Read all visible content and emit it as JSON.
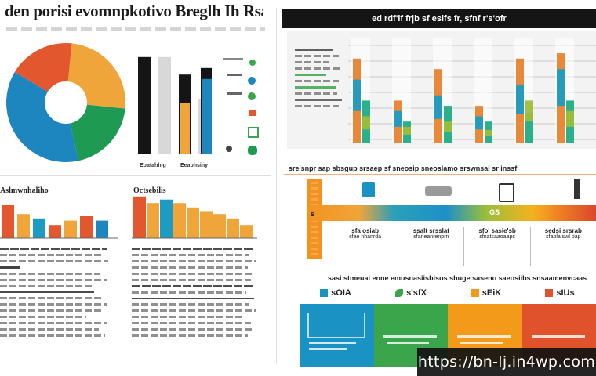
{
  "header": {
    "title": "den porisi evomnpkotivo Breglh Ih Rsazians",
    "subtitle_row": "",
    "right_banner": "ed rdf'if fr|b sf esifs fr, sfnf r's'ofr"
  },
  "left": {
    "legend_caption_left": "Eoatahhig",
    "legend_caption_right": "Eeabhsiny",
    "section_a_title": "Aslmwnhaliho",
    "section_b_title": "Octsebilis"
  },
  "right_mid": {
    "band_title": "sre'snpr sap sbsgup srsaep sf sneosip sneoslamo srswnsal sr inssf",
    "left_badge": "s",
    "stages": [
      {
        "label": "sfa osiab",
        "sub": "sfae nhanrda"
      },
      {
        "label": "ssalt srsslat",
        "sub": "sfaneanrenprn"
      },
      {
        "label": "sfo' sasie'sb",
        "sub": "sfnatsaaoaaps"
      },
      {
        "label": "sedsi srsrab",
        "sub": "sfabla swl pap"
      }
    ],
    "arrow_text": "GS"
  },
  "right_bottom": {
    "title": "sasi stmeuai enne emusnasiisbisos shuge saseno saeosiibs snsaamenvcaas",
    "cards": [
      {
        "label": "sOIA",
        "accent": "#1a93c4",
        "icon": "square-icon"
      },
      {
        "label": "s'sfX",
        "accent": "#3aa54b",
        "icon": "leaf-icon"
      },
      {
        "label": "sEiK",
        "accent": "#f39a1b",
        "icon": "square-icon"
      },
      {
        "label": "sIUs",
        "accent": "#e0522b",
        "icon": "square-icon"
      }
    ]
  },
  "watermark": "https://bn-lj.in4wp.com",
  "chart_data": [
    {
      "type": "pie",
      "slices": [
        {
          "label": "",
          "value": 25,
          "color": "#f0a53a"
        },
        {
          "label": "",
          "value": 20,
          "color": "#1f9a52"
        },
        {
          "label": "",
          "value": 37,
          "color": "#1d86bf"
        },
        {
          "label": "",
          "value": 18,
          "color": "#e2572e"
        }
      ],
      "donut": true
    },
    {
      "type": "bar",
      "orientation": "vertical",
      "categories": [
        "",
        "",
        "",
        "",
        ""
      ],
      "series": [
        {
          "values": [
            88,
            88,
            72,
            50,
            78
          ],
          "colors": [
            "#151515",
            "#d8d8d8",
            "#151515",
            "#d8d8d8",
            "#151515"
          ]
        },
        {
          "values": [
            0,
            0,
            46,
            0,
            68
          ],
          "colors": [
            "",
            "",
            "#f0a53a",
            "",
            "#1d86bf"
          ]
        }
      ],
      "ylim": [
        0,
        100
      ]
    },
    {
      "type": "bar",
      "categories": [
        "",
        "",
        "",
        "",
        "",
        "",
        ""
      ],
      "values": [
        75,
        55,
        45,
        30,
        40,
        50,
        40
      ],
      "colors": [
        "#e2572e",
        "#f0a53a",
        "#1d9bc2",
        "#e2572e",
        "#f0a53a",
        "#e2572e",
        "#1d86bf"
      ],
      "ylim": [
        0,
        100
      ]
    },
    {
      "type": "bar",
      "categories": [
        "",
        "",
        "",
        "",
        "",
        "",
        "",
        "",
        ""
      ],
      "values": [
        95,
        80,
        88,
        80,
        70,
        60,
        55,
        45,
        30
      ],
      "colors": [
        "#e2572e",
        "#f0a53a",
        "#1d9bc2",
        "#f0a53a",
        "#f0a53a",
        "#f0a53a",
        "#f0a53a",
        "#f0a53a",
        "#f0a53a"
      ],
      "ylim": [
        0,
        100
      ]
    },
    {
      "type": "bar",
      "categories": [
        "",
        "",
        "",
        "",
        "",
        ""
      ],
      "series": [
        {
          "name": "",
          "values": [
            80,
            40,
            70,
            35,
            80,
            85
          ],
          "color": "#e8893a"
        },
        {
          "name": "",
          "values": [
            40,
            20,
            35,
            20,
            28,
            40
          ],
          "color": "#2ab08a"
        },
        {
          "name": "",
          "values": [
            60,
            30,
            45,
            25,
            55,
            70
          ],
          "color": "#1d9bc2"
        },
        {
          "name": "",
          "values": [
            25,
            15,
            20,
            12,
            40,
            30
          ],
          "color": "#9bbf3b"
        }
      ],
      "ylim": [
        0,
        100
      ]
    }
  ]
}
